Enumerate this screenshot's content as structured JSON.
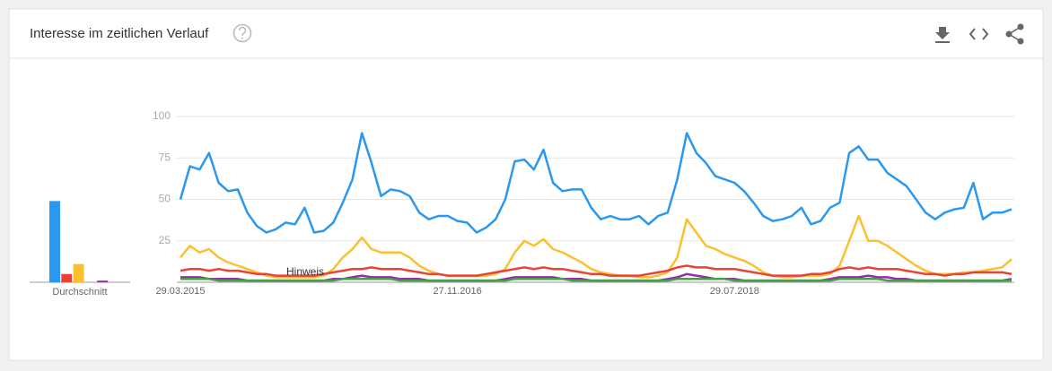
{
  "header": {
    "title": "Interesse im zeitlichen Verlauf"
  },
  "chart_data": [
    {
      "type": "bar",
      "xlabel": "Durchschnitt",
      "values": [
        49,
        5,
        11,
        0,
        1
      ],
      "colors": [
        "#2b98f0",
        "#e84335",
        "#fbc02d",
        "#43a047",
        "#9c27b0"
      ],
      "ylim": [
        0,
        100
      ]
    },
    {
      "type": "line",
      "categories": [
        "29.03.2015",
        null,
        null,
        null,
        null,
        null,
        null,
        null,
        null,
        null,
        null,
        null,
        null,
        null,
        null,
        null,
        null,
        null,
        null,
        null,
        null,
        null,
        null,
        null,
        null,
        null,
        null,
        null,
        null,
        "27.11.2016",
        null,
        null,
        null,
        null,
        null,
        null,
        null,
        null,
        null,
        null,
        null,
        null,
        null,
        null,
        null,
        null,
        null,
        null,
        null,
        null,
        null,
        null,
        null,
        null,
        null,
        null,
        null,
        null,
        "29.07.2018",
        null,
        null,
        null,
        null,
        null,
        null,
        null,
        null,
        null,
        null,
        null,
        null,
        null,
        null,
        null,
        null,
        null,
        null,
        null,
        null,
        null,
        null,
        null,
        null,
        null,
        null,
        null,
        null,
        null
      ],
      "series": [
        {
          "color": "#2b98f0",
          "values": [
            50,
            70,
            68,
            78,
            60,
            55,
            56,
            42,
            34,
            30,
            32,
            36,
            35,
            45,
            30,
            31,
            36,
            48,
            62,
            90,
            72,
            52,
            56,
            55,
            52,
            42,
            38,
            40,
            40,
            37,
            36,
            30,
            33,
            38,
            50,
            73,
            74,
            68,
            80,
            60,
            55,
            56,
            56,
            45,
            38,
            40,
            38,
            38,
            40,
            35,
            40,
            42,
            62,
            90,
            78,
            72,
            64,
            62,
            60,
            55,
            48,
            40,
            37,
            38,
            40,
            45,
            35,
            37,
            45,
            48,
            78,
            82,
            74,
            74,
            66,
            62,
            58,
            50,
            42,
            38,
            42,
            44,
            45,
            60,
            38,
            42,
            42,
            44
          ]
        },
        {
          "color": "#e84335",
          "values": [
            7,
            8,
            8,
            7,
            8,
            7,
            7,
            6,
            5,
            5,
            4,
            4,
            4,
            4,
            4,
            5,
            6,
            7,
            8,
            8,
            9,
            8,
            8,
            8,
            7,
            6,
            5,
            5,
            4,
            4,
            4,
            4,
            5,
            6,
            7,
            8,
            9,
            8,
            9,
            8,
            8,
            7,
            6,
            5,
            5,
            4,
            4,
            4,
            4,
            5,
            6,
            7,
            9,
            10,
            9,
            9,
            8,
            8,
            8,
            7,
            6,
            5,
            4,
            4,
            4,
            4,
            5,
            5,
            6,
            8,
            9,
            8,
            9,
            8,
            8,
            8,
            7,
            6,
            5,
            5,
            4,
            5,
            5,
            6,
            6,
            6,
            6,
            5
          ]
        },
        {
          "color": "#fbc02d",
          "values": [
            15,
            22,
            18,
            20,
            15,
            12,
            10,
            8,
            6,
            4,
            3,
            3,
            3,
            3,
            3,
            4,
            8,
            15,
            20,
            27,
            20,
            18,
            18,
            18,
            15,
            10,
            7,
            5,
            4,
            4,
            4,
            4,
            4,
            5,
            8,
            18,
            25,
            22,
            26,
            20,
            18,
            15,
            12,
            8,
            6,
            5,
            4,
            4,
            3,
            3,
            4,
            6,
            15,
            38,
            30,
            22,
            20,
            17,
            15,
            13,
            10,
            6,
            4,
            3,
            3,
            4,
            4,
            4,
            5,
            10,
            25,
            40,
            25,
            25,
            22,
            18,
            14,
            10,
            7,
            5,
            5,
            5,
            6,
            6,
            7,
            8,
            9,
            14
          ]
        },
        {
          "color": "#43a047",
          "values": [
            2,
            2,
            2,
            2,
            1,
            1,
            1,
            1,
            1,
            1,
            1,
            1,
            1,
            1,
            1,
            1,
            1,
            2,
            2,
            2,
            2,
            2,
            2,
            1,
            1,
            1,
            1,
            1,
            1,
            1,
            1,
            1,
            1,
            1,
            1,
            2,
            2,
            2,
            2,
            2,
            2,
            1,
            1,
            1,
            1,
            1,
            1,
            1,
            1,
            1,
            1,
            1,
            2,
            2,
            2,
            2,
            2,
            2,
            1,
            1,
            1,
            1,
            1,
            1,
            1,
            1,
            1,
            1,
            1,
            2,
            2,
            2,
            2,
            2,
            1,
            1,
            1,
            1,
            1,
            1,
            1,
            1,
            1,
            1,
            1,
            1,
            1,
            1
          ]
        },
        {
          "color": "#9c27b0",
          "values": [
            3,
            3,
            3,
            2,
            2,
            2,
            2,
            1,
            1,
            1,
            1,
            1,
            1,
            1,
            1,
            1,
            2,
            2,
            3,
            4,
            3,
            3,
            3,
            2,
            2,
            2,
            1,
            1,
            1,
            1,
            1,
            1,
            1,
            1,
            2,
            3,
            3,
            3,
            3,
            3,
            2,
            2,
            2,
            1,
            1,
            1,
            1,
            1,
            1,
            1,
            1,
            2,
            3,
            5,
            4,
            3,
            2,
            2,
            2,
            1,
            1,
            1,
            1,
            1,
            1,
            1,
            1,
            1,
            2,
            3,
            3,
            3,
            4,
            3,
            3,
            2,
            2,
            1,
            1,
            1,
            1,
            1,
            1,
            1,
            1,
            1,
            1,
            2
          ]
        }
      ],
      "ylim": [
        0,
        100
      ],
      "yticks": [
        25,
        50,
        75,
        100
      ],
      "grid": true,
      "annotation": "Hinweis"
    }
  ]
}
